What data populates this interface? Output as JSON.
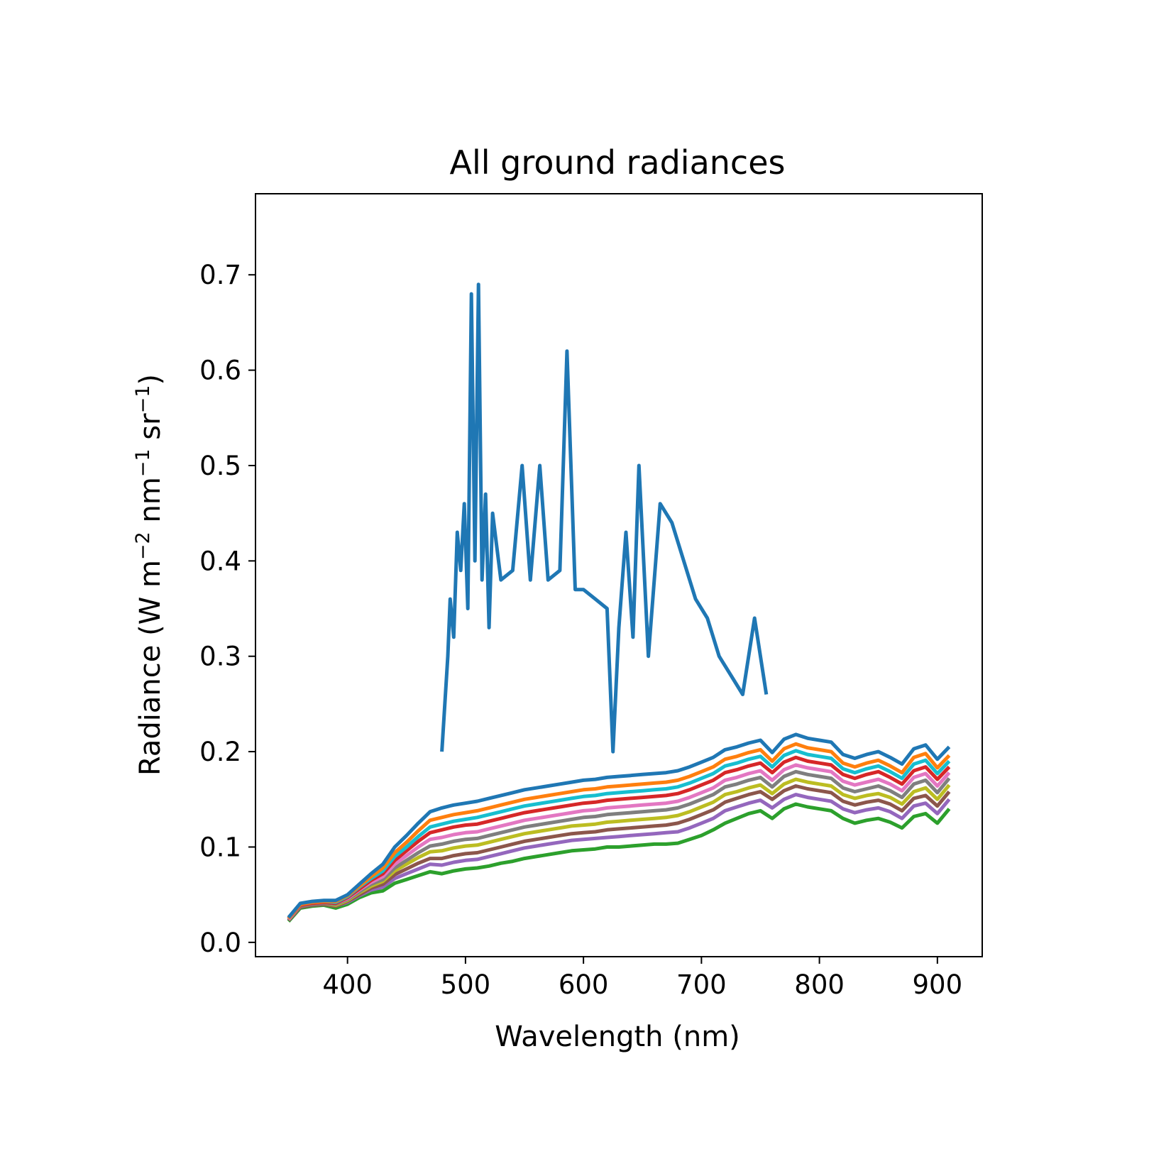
{
  "chart_data": {
    "type": "line",
    "title": "All ground radiances",
    "xlabel": "Wavelength (nm)",
    "ylabel": {
      "base": "Radiance (W m",
      "exp1": "−2",
      "mid1": " nm",
      "exp2": "−1",
      "mid2": " sr",
      "exp3": "−1",
      "end": ")"
    },
    "xlim": [
      322,
      938
    ],
    "ylim": [
      -0.015,
      0.785
    ],
    "xticks": [
      400,
      500,
      600,
      700,
      800,
      900
    ],
    "yticks": [
      0.0,
      0.1,
      0.2,
      0.3,
      0.4,
      0.5,
      0.6,
      0.7
    ],
    "xtick_labels": [
      "400",
      "500",
      "600",
      "700",
      "800",
      "900"
    ],
    "ytick_labels": [
      "0.0",
      "0.1",
      "0.2",
      "0.3",
      "0.4",
      "0.5",
      "0.6",
      "0.7"
    ],
    "grid": false,
    "legend": "none",
    "colors": [
      "#2ca02c",
      "#9467bd",
      "#8c564b",
      "#bcbd22",
      "#7f7f7f",
      "#e377c2",
      "#d62728",
      "#17becf",
      "#ff7f0e",
      "#1f77b4"
    ],
    "x": [
      350,
      360,
      370,
      380,
      390,
      400,
      410,
      420,
      430,
      440,
      450,
      460,
      470,
      480,
      490,
      500,
      510,
      520,
      530,
      540,
      550,
      560,
      570,
      580,
      590,
      600,
      610,
      620,
      630,
      640,
      650,
      660,
      670,
      680,
      690,
      700,
      710,
      720,
      730,
      740,
      750,
      760,
      770,
      780,
      790,
      800,
      810,
      820,
      830,
      840,
      850,
      860,
      870,
      880,
      890,
      900,
      910
    ],
    "series": [
      {
        "values": [
          0.022,
          0.036,
          0.038,
          0.039,
          0.036,
          0.04,
          0.047,
          0.052,
          0.054,
          0.062,
          0.066,
          0.07,
          0.074,
          0.072,
          0.075,
          0.077,
          0.078,
          0.08,
          0.083,
          0.085,
          0.088,
          0.09,
          0.092,
          0.094,
          0.096,
          0.097,
          0.098,
          0.1,
          0.1,
          0.101,
          0.102,
          0.103,
          0.103,
          0.104,
          0.108,
          0.112,
          0.118,
          0.125,
          0.13,
          0.135,
          0.138,
          0.13,
          0.14,
          0.145,
          0.142,
          0.14,
          0.138,
          0.13,
          0.125,
          0.128,
          0.13,
          0.126,
          0.12,
          0.132,
          0.135,
          0.125,
          0.14
        ]
      },
      {
        "values": [
          0.023,
          0.037,
          0.039,
          0.04,
          0.038,
          0.042,
          0.049,
          0.055,
          0.058,
          0.067,
          0.072,
          0.077,
          0.082,
          0.081,
          0.084,
          0.086,
          0.087,
          0.09,
          0.093,
          0.096,
          0.099,
          0.101,
          0.103,
          0.105,
          0.107,
          0.108,
          0.109,
          0.11,
          0.111,
          0.112,
          0.113,
          0.114,
          0.115,
          0.116,
          0.12,
          0.125,
          0.13,
          0.138,
          0.142,
          0.146,
          0.149,
          0.141,
          0.15,
          0.155,
          0.152,
          0.15,
          0.148,
          0.14,
          0.136,
          0.139,
          0.141,
          0.137,
          0.13,
          0.143,
          0.146,
          0.135,
          0.15
        ]
      },
      {
        "values": [
          0.023,
          0.037,
          0.039,
          0.04,
          0.038,
          0.043,
          0.05,
          0.057,
          0.061,
          0.071,
          0.077,
          0.083,
          0.088,
          0.088,
          0.091,
          0.093,
          0.094,
          0.097,
          0.1,
          0.103,
          0.106,
          0.108,
          0.11,
          0.112,
          0.114,
          0.115,
          0.116,
          0.118,
          0.119,
          0.12,
          0.121,
          0.122,
          0.123,
          0.125,
          0.129,
          0.134,
          0.139,
          0.147,
          0.151,
          0.155,
          0.158,
          0.15,
          0.159,
          0.164,
          0.161,
          0.159,
          0.157,
          0.148,
          0.144,
          0.147,
          0.149,
          0.145,
          0.138,
          0.151,
          0.154,
          0.143,
          0.158
        ]
      },
      {
        "values": [
          0.024,
          0.038,
          0.04,
          0.041,
          0.039,
          0.044,
          0.052,
          0.059,
          0.064,
          0.075,
          0.082,
          0.089,
          0.095,
          0.096,
          0.099,
          0.101,
          0.102,
          0.105,
          0.108,
          0.111,
          0.114,
          0.116,
          0.118,
          0.12,
          0.122,
          0.123,
          0.124,
          0.126,
          0.127,
          0.128,
          0.129,
          0.13,
          0.131,
          0.133,
          0.137,
          0.142,
          0.147,
          0.155,
          0.158,
          0.162,
          0.165,
          0.156,
          0.166,
          0.171,
          0.168,
          0.166,
          0.164,
          0.155,
          0.151,
          0.154,
          0.156,
          0.152,
          0.145,
          0.158,
          0.162,
          0.15,
          0.165
        ]
      },
      {
        "values": [
          0.024,
          0.038,
          0.04,
          0.041,
          0.04,
          0.045,
          0.053,
          0.061,
          0.066,
          0.078,
          0.086,
          0.094,
          0.101,
          0.103,
          0.106,
          0.108,
          0.109,
          0.112,
          0.115,
          0.118,
          0.121,
          0.123,
          0.125,
          0.127,
          0.129,
          0.131,
          0.132,
          0.134,
          0.135,
          0.136,
          0.137,
          0.138,
          0.139,
          0.141,
          0.145,
          0.15,
          0.155,
          0.163,
          0.166,
          0.17,
          0.173,
          0.163,
          0.174,
          0.179,
          0.176,
          0.174,
          0.172,
          0.162,
          0.158,
          0.161,
          0.164,
          0.159,
          0.152,
          0.166,
          0.17,
          0.157,
          0.172
        ]
      },
      {
        "values": [
          0.024,
          0.039,
          0.041,
          0.042,
          0.041,
          0.046,
          0.055,
          0.063,
          0.069,
          0.082,
          0.091,
          0.1,
          0.108,
          0.11,
          0.113,
          0.115,
          0.116,
          0.119,
          0.122,
          0.125,
          0.128,
          0.13,
          0.132,
          0.134,
          0.136,
          0.138,
          0.139,
          0.141,
          0.142,
          0.143,
          0.144,
          0.145,
          0.146,
          0.148,
          0.152,
          0.157,
          0.162,
          0.17,
          0.173,
          0.177,
          0.18,
          0.17,
          0.181,
          0.186,
          0.183,
          0.181,
          0.179,
          0.169,
          0.165,
          0.168,
          0.171,
          0.166,
          0.159,
          0.173,
          0.177,
          0.164,
          0.178
        ]
      },
      {
        "values": [
          0.025,
          0.039,
          0.041,
          0.042,
          0.041,
          0.047,
          0.056,
          0.065,
          0.072,
          0.086,
          0.096,
          0.106,
          0.115,
          0.118,
          0.121,
          0.123,
          0.124,
          0.127,
          0.13,
          0.133,
          0.136,
          0.138,
          0.14,
          0.142,
          0.144,
          0.146,
          0.147,
          0.149,
          0.15,
          0.151,
          0.152,
          0.153,
          0.154,
          0.156,
          0.16,
          0.165,
          0.17,
          0.178,
          0.181,
          0.185,
          0.188,
          0.178,
          0.189,
          0.194,
          0.19,
          0.188,
          0.186,
          0.176,
          0.172,
          0.176,
          0.179,
          0.173,
          0.166,
          0.18,
          0.184,
          0.171,
          0.184
        ]
      },
      {
        "values": [
          0.025,
          0.04,
          0.042,
          0.043,
          0.042,
          0.048,
          0.058,
          0.067,
          0.075,
          0.09,
          0.1,
          0.111,
          0.121,
          0.124,
          0.127,
          0.129,
          0.131,
          0.134,
          0.137,
          0.14,
          0.143,
          0.145,
          0.147,
          0.149,
          0.151,
          0.153,
          0.154,
          0.156,
          0.157,
          0.158,
          0.159,
          0.16,
          0.161,
          0.163,
          0.167,
          0.172,
          0.177,
          0.185,
          0.188,
          0.192,
          0.195,
          0.184,
          0.196,
          0.201,
          0.197,
          0.195,
          0.193,
          0.182,
          0.178,
          0.182,
          0.185,
          0.179,
          0.172,
          0.187,
          0.191,
          0.177,
          0.19
        ]
      },
      {
        "values": [
          0.025,
          0.04,
          0.042,
          0.043,
          0.043,
          0.049,
          0.059,
          0.069,
          0.078,
          0.094,
          0.105,
          0.117,
          0.128,
          0.131,
          0.134,
          0.136,
          0.138,
          0.141,
          0.144,
          0.147,
          0.15,
          0.152,
          0.154,
          0.156,
          0.158,
          0.16,
          0.161,
          0.163,
          0.164,
          0.165,
          0.166,
          0.167,
          0.168,
          0.17,
          0.174,
          0.179,
          0.184,
          0.192,
          0.195,
          0.199,
          0.202,
          0.19,
          0.203,
          0.208,
          0.204,
          0.202,
          0.2,
          0.188,
          0.184,
          0.188,
          0.191,
          0.185,
          0.178,
          0.194,
          0.198,
          0.183,
          0.196
        ]
      },
      {
        "values": [
          0.026,
          0.041,
          0.043,
          0.044,
          0.044,
          0.05,
          0.061,
          0.072,
          0.082,
          0.1,
          0.112,
          0.125,
          0.137,
          0.141,
          0.144,
          0.146,
          0.148,
          0.151,
          0.154,
          0.157,
          0.16,
          0.162,
          0.164,
          0.166,
          0.168,
          0.17,
          0.171,
          0.173,
          0.174,
          0.175,
          0.176,
          0.177,
          0.178,
          0.18,
          0.184,
          0.189,
          0.194,
          0.202,
          0.205,
          0.209,
          0.212,
          0.199,
          0.213,
          0.218,
          0.214,
          0.212,
          0.21,
          0.197,
          0.193,
          0.197,
          0.2,
          0.194,
          0.187,
          0.203,
          0.207,
          0.192,
          0.205
        ]
      }
    ],
    "peak_series": {
      "color": "#1f77b4",
      "x": [
        480,
        485,
        487,
        490,
        493,
        496,
        499,
        502,
        505,
        508,
        511,
        514,
        517,
        520,
        523,
        530,
        540,
        548,
        555,
        563,
        570,
        580,
        586,
        593,
        600,
        610,
        620,
        625,
        630,
        636,
        642,
        647,
        655,
        665,
        675,
        685,
        695,
        705,
        715,
        725,
        735,
        745,
        755
      ],
      "values": [
        0.2,
        0.3,
        0.36,
        0.32,
        0.43,
        0.39,
        0.46,
        0.35,
        0.68,
        0.4,
        0.69,
        0.38,
        0.47,
        0.33,
        0.45,
        0.38,
        0.39,
        0.5,
        0.38,
        0.5,
        0.38,
        0.39,
        0.62,
        0.37,
        0.37,
        0.36,
        0.35,
        0.2,
        0.33,
        0.43,
        0.32,
        0.5,
        0.3,
        0.46,
        0.44,
        0.4,
        0.36,
        0.34,
        0.3,
        0.28,
        0.26,
        0.34,
        0.26
      ]
    }
  }
}
